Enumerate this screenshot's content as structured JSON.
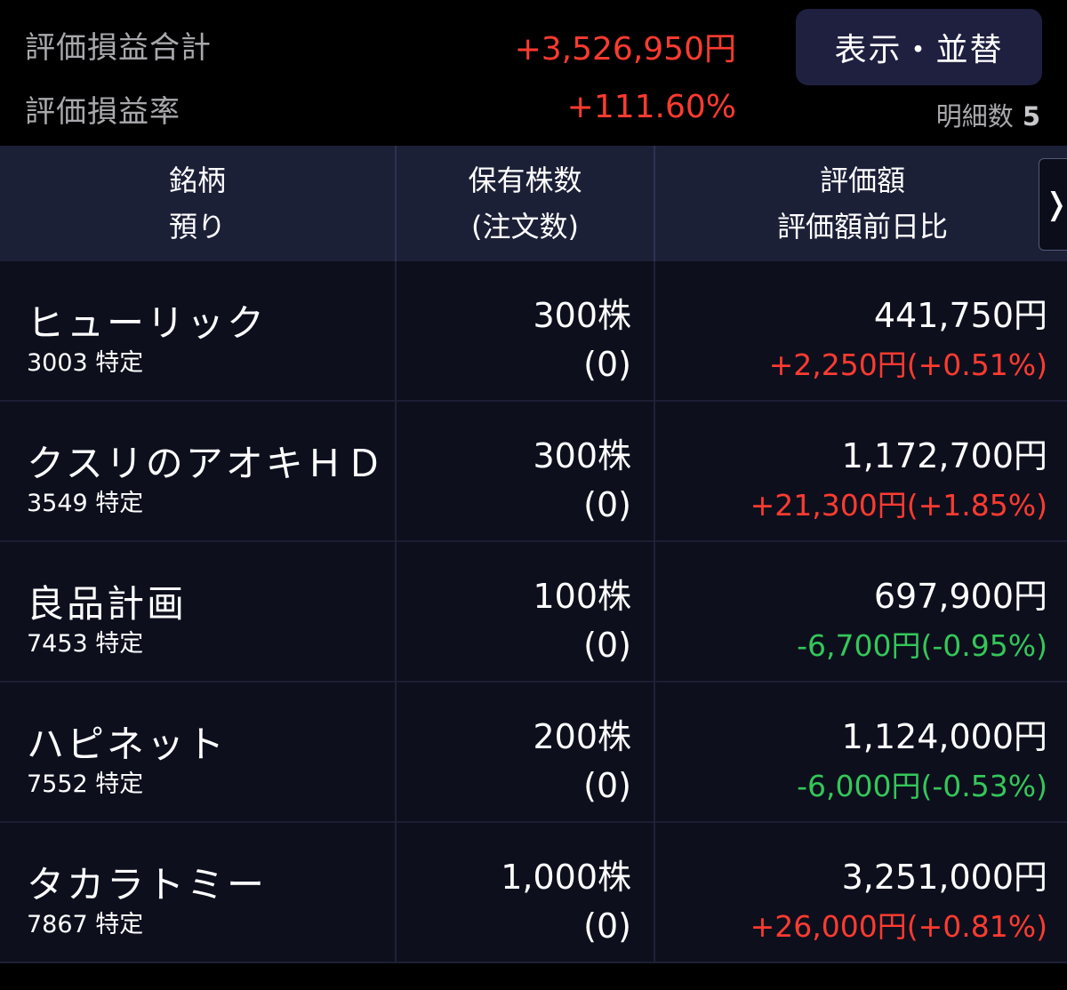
{
  "summary": {
    "total_pl_label": "評価損益合計",
    "total_pl_value": "+3,526,950円",
    "pl_rate_label": "評価損益率",
    "pl_rate_value": "+111.60%",
    "display_sort_label": "表示・並替",
    "detail_count_label": "明細数",
    "detail_count_value": "5"
  },
  "header": {
    "col1_line1": "銘柄",
    "col1_line2": "預り",
    "col2_line1": "保有株数",
    "col2_line2": "(注文数)",
    "col3_line1": "評価額",
    "col3_line2": "評価額前日比",
    "next_icon": "chevron-right-icon",
    "next_glyph": "❭"
  },
  "colors": {
    "positive": "#ff3b30",
    "negative": "#34c759",
    "header_bg": "#1c2037",
    "row_bg": "#0d0f1d",
    "button_bg": "#1f2040"
  },
  "holdings": [
    {
      "name": "ヒューリック",
      "meta": "3003 特定",
      "shares": "300株",
      "orders": "(0)",
      "value": "441,750円",
      "change": "+2,250円(+0.51%)",
      "direction": "up"
    },
    {
      "name": "クスリのアオキＨＤ",
      "meta": "3549 特定",
      "shares": "300株",
      "orders": "(0)",
      "value": "1,172,700円",
      "change": "+21,300円(+1.85%)",
      "direction": "up"
    },
    {
      "name": "良品計画",
      "meta": "7453 特定",
      "shares": "100株",
      "orders": "(0)",
      "value": "697,900円",
      "change": "-6,700円(-0.95%)",
      "direction": "down"
    },
    {
      "name": "ハピネット",
      "meta": "7552 特定",
      "shares": "200株",
      "orders": "(0)",
      "value": "1,124,000円",
      "change": "-6,000円(-0.53%)",
      "direction": "down"
    },
    {
      "name": "タカラトミー",
      "meta": "7867 特定",
      "shares": "1,000株",
      "orders": "(0)",
      "value": "3,251,000円",
      "change": "+26,000円(+0.81%)",
      "direction": "up"
    }
  ]
}
